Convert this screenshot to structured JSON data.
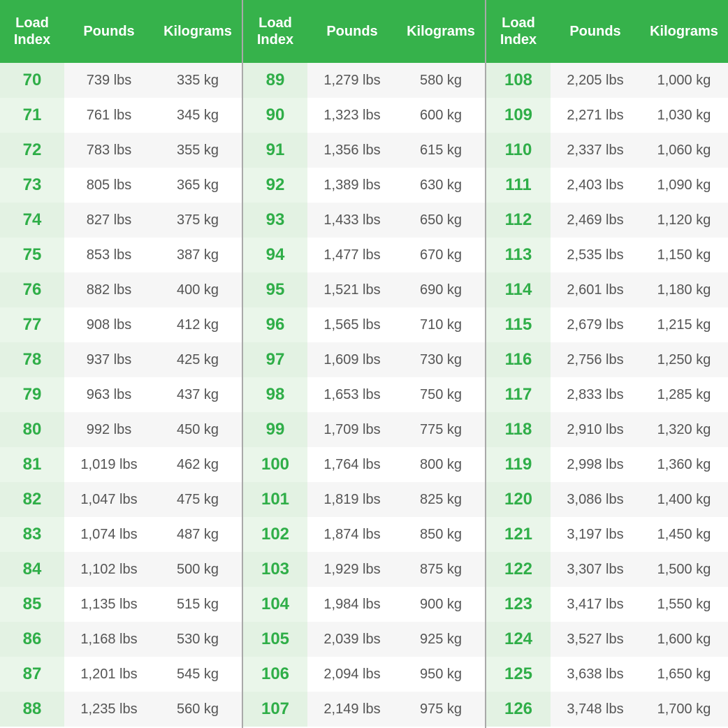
{
  "panels": [
    {
      "header": [
        "Load Index",
        "Pounds",
        "Kilograms"
      ],
      "rows": [
        [
          "70",
          "739 lbs",
          "335 kg"
        ],
        [
          "71",
          "761 lbs",
          "345 kg"
        ],
        [
          "72",
          "783 lbs",
          "355 kg"
        ],
        [
          "73",
          "805 lbs",
          "365 kg"
        ],
        [
          "74",
          "827 lbs",
          "375 kg"
        ],
        [
          "75",
          "853 lbs",
          "387 kg"
        ],
        [
          "76",
          "882 lbs",
          "400 kg"
        ],
        [
          "77",
          "908 lbs",
          "412 kg"
        ],
        [
          "78",
          "937 lbs",
          "425 kg"
        ],
        [
          "79",
          "963 lbs",
          "437 kg"
        ],
        [
          "80",
          "992 lbs",
          "450 kg"
        ],
        [
          "81",
          "1,019 lbs",
          "462 kg"
        ],
        [
          "82",
          "1,047 lbs",
          "475 kg"
        ],
        [
          "83",
          "1,074 lbs",
          "487 kg"
        ],
        [
          "84",
          "1,102 lbs",
          "500 kg"
        ],
        [
          "85",
          "1,135 lbs",
          "515 kg"
        ],
        [
          "86",
          "1,168 lbs",
          "530 kg"
        ],
        [
          "87",
          "1,201 lbs",
          "545 kg"
        ],
        [
          "88",
          "1,235 lbs",
          "560 kg"
        ]
      ]
    },
    {
      "header": [
        "Load Index",
        "Pounds",
        "Kilograms"
      ],
      "rows": [
        [
          "89",
          "1,279 lbs",
          "580 kg"
        ],
        [
          "90",
          "1,323 lbs",
          "600 kg"
        ],
        [
          "91",
          "1,356 lbs",
          "615 kg"
        ],
        [
          "92",
          "1,389 lbs",
          "630 kg"
        ],
        [
          "93",
          "1,433 lbs",
          "650 kg"
        ],
        [
          "94",
          "1,477 lbs",
          "670 kg"
        ],
        [
          "95",
          "1,521 lbs",
          "690 kg"
        ],
        [
          "96",
          "1,565 lbs",
          "710 kg"
        ],
        [
          "97",
          "1,609 lbs",
          "730 kg"
        ],
        [
          "98",
          "1,653 lbs",
          "750 kg"
        ],
        [
          "99",
          "1,709 lbs",
          "775 kg"
        ],
        [
          "100",
          "1,764 lbs",
          "800 kg"
        ],
        [
          "101",
          "1,819 lbs",
          "825 kg"
        ],
        [
          "102",
          "1,874 lbs",
          "850 kg"
        ],
        [
          "103",
          "1,929 lbs",
          "875 kg"
        ],
        [
          "104",
          "1,984 lbs",
          "900 kg"
        ],
        [
          "105",
          "2,039 lbs",
          "925 kg"
        ],
        [
          "106",
          "2,094 lbs",
          "950 kg"
        ],
        [
          "107",
          "2,149 lbs",
          "975 kg"
        ]
      ]
    },
    {
      "header": [
        "Load Index",
        "Pounds",
        "Kilograms"
      ],
      "rows": [
        [
          "108",
          "2,205 lbs",
          "1,000 kg"
        ],
        [
          "109",
          "2,271 lbs",
          "1,030 kg"
        ],
        [
          "110",
          "2,337 lbs",
          "1,060 kg"
        ],
        [
          "111",
          "2,403 lbs",
          "1,090 kg"
        ],
        [
          "112",
          "2,469 lbs",
          "1,120 kg"
        ],
        [
          "113",
          "2,535 lbs",
          "1,150 kg"
        ],
        [
          "114",
          "2,601 lbs",
          "1,180 kg"
        ],
        [
          "115",
          "2,679 lbs",
          "1,215 kg"
        ],
        [
          "116",
          "2,756 lbs",
          "1,250 kg"
        ],
        [
          "117",
          "2,833 lbs",
          "1,285 kg"
        ],
        [
          "118",
          "2,910 lbs",
          "1,320 kg"
        ],
        [
          "119",
          "2,998 lbs",
          "1,360 kg"
        ],
        [
          "120",
          "3,086 lbs",
          "1,400 kg"
        ],
        [
          "121",
          "3,197 lbs",
          "1,450 kg"
        ],
        [
          "122",
          "3,307 lbs",
          "1,500 kg"
        ],
        [
          "123",
          "3,417 lbs",
          "1,550 kg"
        ],
        [
          "124",
          "3,527 lbs",
          "1,600 kg"
        ],
        [
          "125",
          "3,638 lbs",
          "1,650 kg"
        ],
        [
          "126",
          "3,748 lbs",
          "1,700 kg"
        ]
      ]
    }
  ]
}
